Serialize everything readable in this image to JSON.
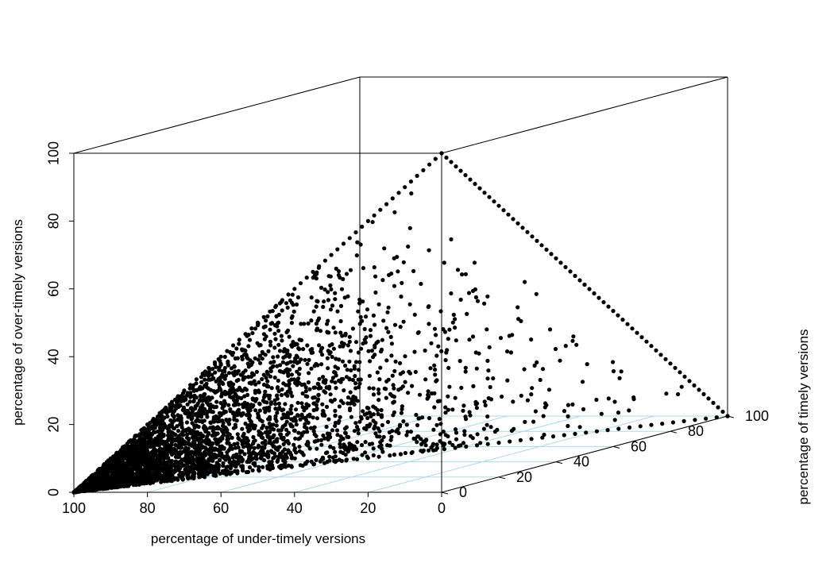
{
  "chart_data": {
    "type": "scatter",
    "projection": "3d",
    "title": "",
    "xlabel": "percentage of under-timely versions",
    "ylabel": "percentage of timely versions",
    "zlabel": "percentage of over-timely versions",
    "x_ticks": [
      "100",
      "80",
      "60",
      "40",
      "20",
      "0"
    ],
    "y_ticks": [
      "0",
      "20",
      "40",
      "60",
      "80",
      "100"
    ],
    "z_ticks": [
      "0",
      "20",
      "40",
      "60",
      "80",
      "100"
    ],
    "xlim": [
      0,
      100
    ],
    "ylim": [
      0,
      100
    ],
    "zlim": [
      0,
      100
    ],
    "grid": "floor",
    "legend": "none",
    "point_color": "#000000",
    "grid_color": "#add8e6",
    "constraint": "x + y + z = 100",
    "points_description": "dense cloud of points filling the simplex where the three percentages sum to 100; points concentrated near the under-timely corner",
    "series": [
      {
        "sample_points": [
          [
            100,
            0,
            0
          ],
          [
            0,
            100,
            0
          ],
          [
            0,
            0,
            100
          ],
          [
            90,
            5,
            5
          ],
          [
            80,
            10,
            10
          ],
          [
            70,
            15,
            15
          ],
          [
            60,
            20,
            20
          ],
          [
            50,
            25,
            25
          ],
          [
            40,
            30,
            30
          ],
          [
            30,
            40,
            30
          ],
          [
            20,
            50,
            30
          ],
          [
            10,
            60,
            30
          ],
          [
            50,
            0,
            50
          ],
          [
            50,
            50,
            0
          ],
          [
            0,
            50,
            50
          ],
          [
            33,
            33,
            34
          ],
          [
            75,
            5,
            20
          ],
          [
            60,
            10,
            30
          ],
          [
            45,
            15,
            40
          ],
          [
            30,
            20,
            50
          ],
          [
            15,
            25,
            60
          ],
          [
            25,
            60,
            15
          ],
          [
            10,
            80,
            10
          ],
          [
            5,
            85,
            10
          ],
          [
            20,
            70,
            10
          ],
          [
            65,
            30,
            5
          ],
          [
            85,
            10,
            5
          ]
        ]
      }
    ]
  }
}
